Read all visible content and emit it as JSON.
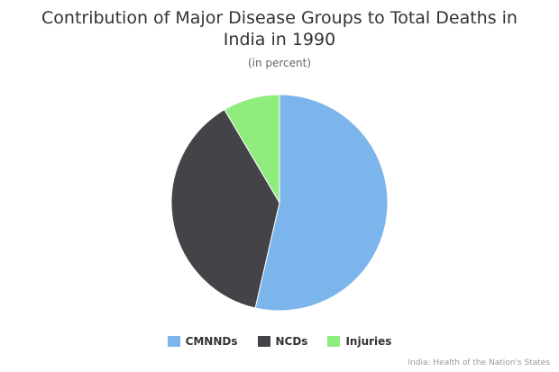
{
  "chart_data": {
    "type": "pie",
    "title": "Contribution of Major Disease Groups to Total Deaths in\nIndia in 1990",
    "subtitle": "(in percent)",
    "slices": [
      {
        "name": "CMNNDs",
        "value": 53.6,
        "color": "#7cb5ec"
      },
      {
        "name": "NCDs",
        "value": 37.9,
        "color": "#434348"
      },
      {
        "name": "Injuries",
        "value": 8.5,
        "color": "#90ed7d"
      }
    ],
    "legend_position": "bottom-center",
    "credit": "India: Health of the Nation's States"
  }
}
